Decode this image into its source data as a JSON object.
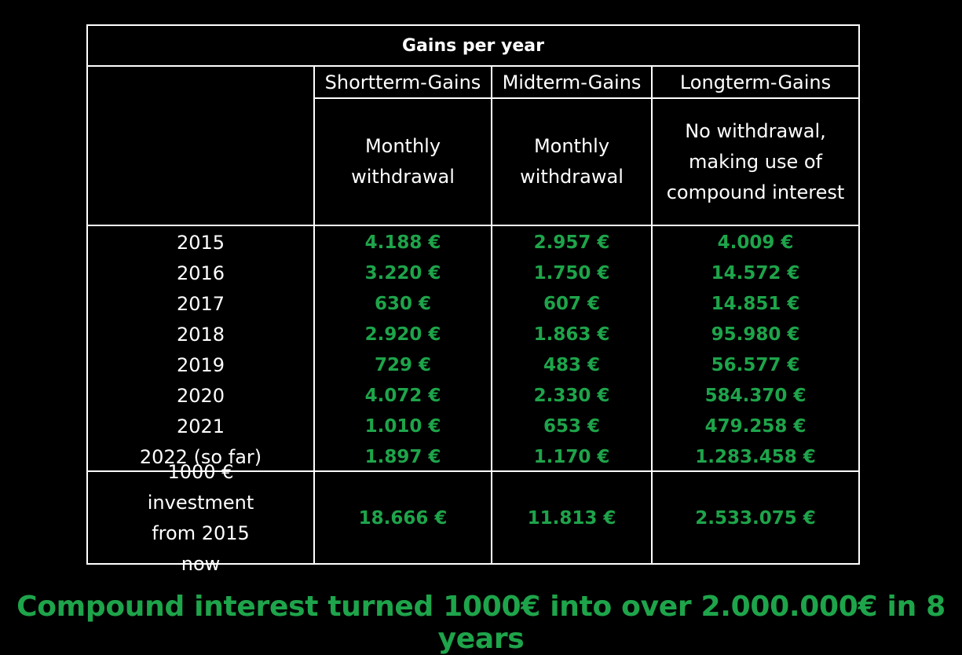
{
  "table": {
    "title": "Gains per year",
    "columns": [
      "Shortterm-Gains",
      "Midterm-Gains",
      "Longterm-Gains"
    ],
    "descriptions": [
      "Monthly withdrawal",
      "Monthly withdrawal",
      "No withdrawal, making use of compound interest"
    ],
    "rows": [
      {
        "year": "2015",
        "values": [
          "4.188 €",
          "2.957 €",
          "4.009 €"
        ]
      },
      {
        "year": "2016",
        "values": [
          "3.220 €",
          "1.750 €",
          "14.572 €"
        ]
      },
      {
        "year": "2017",
        "values": [
          "630 €",
          "607 €",
          "14.851 €"
        ]
      },
      {
        "year": "2018",
        "values": [
          "2.920 €",
          "1.863 €",
          "95.980 €"
        ]
      },
      {
        "year": "2019",
        "values": [
          "729 €",
          "483 €",
          "56.577 €"
        ]
      },
      {
        "year": "2020",
        "values": [
          "4.072 €",
          "2.330 €",
          "584.370 €"
        ]
      },
      {
        "year": "2021",
        "values": [
          "1.010 €",
          "653 €",
          "479.258 €"
        ]
      },
      {
        "year": "2022 (so far)",
        "values": [
          "1.897 €",
          "1.170 €",
          "1.283.458 €"
        ]
      }
    ],
    "total": {
      "label": "1000 € investment from 2015 now",
      "values": [
        "18.666 €",
        "11.813 €",
        "2.533.075 €"
      ]
    }
  },
  "footer": "Compound interest turned 1000€ into over 2.000.000€ in 8 years",
  "colors": {
    "background": "#000000",
    "text": "#ffffff",
    "value": "#1ea44a",
    "border": "#ffffff"
  }
}
